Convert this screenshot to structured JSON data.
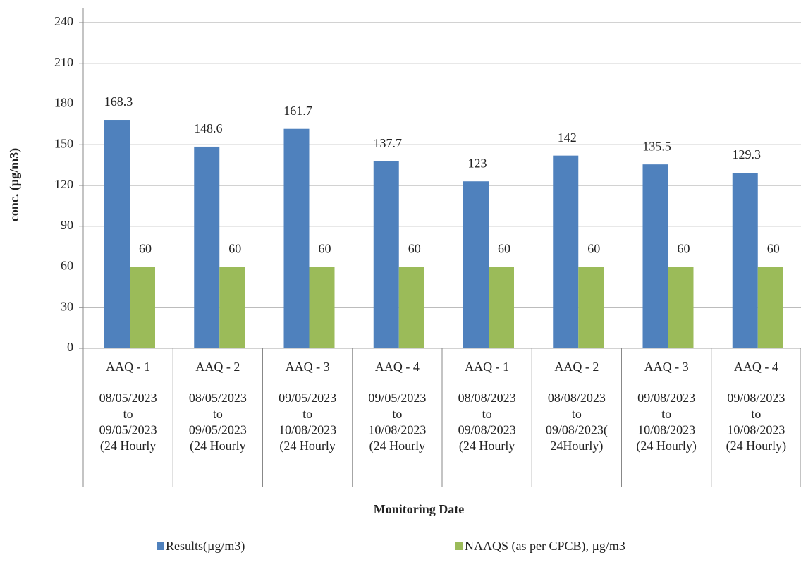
{
  "chart_data": {
    "type": "bar",
    "y_label": "conc. (µg/m3)",
    "x_label": "Monitoring Date",
    "categories": [
      "AAQ - 1",
      "AAQ - 2",
      "AAQ - 3",
      "AAQ - 4",
      "AAQ - 1",
      "AAQ - 2",
      "AAQ - 3",
      "AAQ - 4"
    ],
    "subcategories": [
      [
        "08/05/2023",
        "to",
        "09/05/2023",
        "(24 Hourly"
      ],
      [
        "08/05/2023",
        "to",
        "09/05/2023",
        "(24 Hourly"
      ],
      [
        "09/05/2023",
        "to",
        "10/08/2023",
        "(24 Hourly"
      ],
      [
        "09/05/2023",
        "to",
        "10/08/2023",
        "(24 Hourly"
      ],
      [
        "08/08/2023",
        "to",
        "09/08/2023",
        "(24 Hourly"
      ],
      [
        "08/08/2023",
        "to",
        "09/08/2023(",
        "24Hourly)"
      ],
      [
        "09/08/2023",
        "to",
        "10/08/2023",
        "(24 Hourly)"
      ],
      [
        "09/08/2023",
        "to",
        "10/08/2023",
        "(24 Hourly)"
      ]
    ],
    "series": [
      {
        "name": "Results(µg/m3)",
        "color": "#4f81bd",
        "values": [
          168.3,
          148.6,
          161.7,
          137.7,
          123,
          142,
          135.5,
          129.3
        ]
      },
      {
        "name": "NAAQS (as per CPCB), µg/m3",
        "color": "#9bbb59",
        "values": [
          60,
          60,
          60,
          60,
          60,
          60,
          60,
          60
        ]
      }
    ],
    "ylim": [
      0,
      240
    ],
    "yticks": [
      0,
      30,
      60,
      90,
      120,
      150,
      180,
      210,
      240
    ],
    "grid": true,
    "legend": "bottom"
  }
}
